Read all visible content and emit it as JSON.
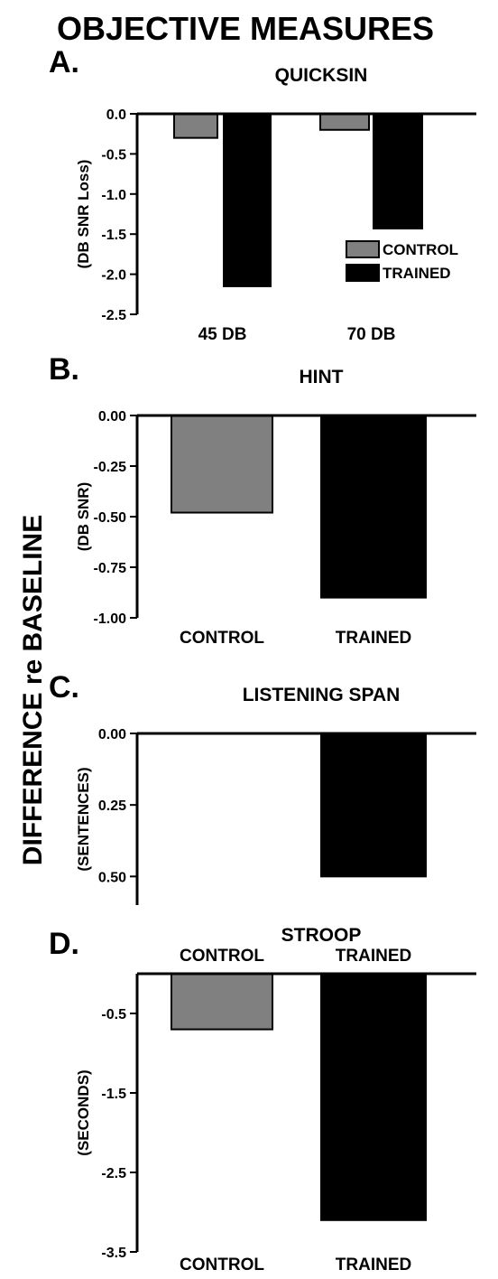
{
  "figure": {
    "title": "OBJECTIVE MEASURES",
    "side_label": "DIFFERENCE re BASELINE"
  },
  "colors": {
    "control": "#808080",
    "trained": "#000000"
  },
  "chart_data": [
    {
      "type": "bar",
      "panel_label": "A.",
      "title": "QUICKSIN",
      "ylabel": "(DB SNR Loss)",
      "categories": [
        "45 DB",
        "70 DB"
      ],
      "series": [
        {
          "name": "CONTROL",
          "values": [
            -0.3,
            -0.2
          ]
        },
        {
          "name": "TRAINED",
          "values": [
            -2.15,
            -1.43
          ]
        }
      ],
      "ylim": [
        -2.5,
        0
      ],
      "yticks": [
        0,
        -0.5,
        -1,
        -1.5,
        -2,
        -2.5
      ],
      "ytick_labels": [
        "0.0",
        "-0.5",
        "-1.0",
        "-1.5",
        "-2.0",
        "-2.5"
      ],
      "inverted": false,
      "legend": "lower-right"
    },
    {
      "type": "bar",
      "panel_label": "B.",
      "title": "HINT",
      "ylabel": "(DB SNR)",
      "categories": [
        "CONTROL",
        "TRAINED"
      ],
      "values": [
        -0.48,
        -0.9
      ],
      "ylim": [
        -1,
        0
      ],
      "yticks": [
        0,
        -0.25,
        -0.5,
        -0.75,
        -1
      ],
      "ytick_labels": [
        "0.00",
        "-0.25",
        "-0.50",
        "-0.75",
        "-1.00"
      ],
      "inverted": false
    },
    {
      "type": "bar",
      "panel_label": "C.",
      "title": "LISTENING SPAN",
      "ylabel": "(SENTENCES)",
      "categories": [
        "CONTROL",
        "TRAINED"
      ],
      "values": [
        0,
        0.5
      ],
      "ylim": [
        0,
        0.6
      ],
      "yticks": [
        0,
        0.25,
        0.5
      ],
      "ytick_labels": [
        "0.00",
        "0.25",
        "0.50"
      ],
      "inverted": true
    },
    {
      "type": "bar",
      "panel_label": "D.",
      "title": "STROOP",
      "ylabel": "(SECONDS)",
      "categories": [
        "CONTROL",
        "TRAINED"
      ],
      "values": [
        -0.7,
        -3.1
      ],
      "ylim": [
        -3.5,
        0
      ],
      "yticks": [
        -0.5,
        -1.5,
        -2.5,
        -3.5
      ],
      "ytick_labels": [
        "-0.5",
        "-1.5",
        "-2.5",
        "-3.5"
      ],
      "inverted": false
    }
  ]
}
